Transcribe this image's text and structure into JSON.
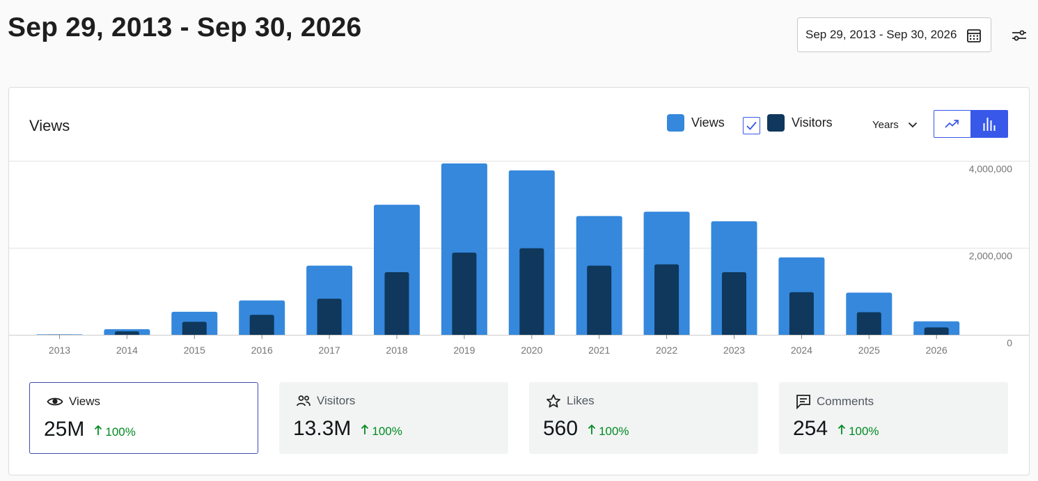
{
  "header": {
    "title": "Sep 29, 2013 - Sep 30, 2026",
    "date_range": "Sep 29, 2013 - Sep 30, 2026"
  },
  "chart_card": {
    "title": "Views",
    "legend": {
      "views": "Views",
      "visitors": "Visitors"
    },
    "period": "Years",
    "colors": {
      "views": "#3588dc",
      "visitors": "#0f385c",
      "accent": "#3858e9"
    }
  },
  "chart_data": {
    "type": "bar",
    "categories": [
      "2013",
      "2014",
      "2015",
      "2016",
      "2017",
      "2018",
      "2019",
      "2020",
      "2021",
      "2022",
      "2023",
      "2024",
      "2025",
      "2026"
    ],
    "series": [
      {
        "name": "Views",
        "values": [
          10000,
          130000,
          530000,
          790000,
          1590000,
          2990000,
          3940000,
          3780000,
          2730000,
          2830000,
          2610000,
          1780000,
          970000,
          310000
        ]
      },
      {
        "name": "Visitors",
        "values": [
          5000,
          80000,
          300000,
          460000,
          830000,
          1440000,
          1890000,
          1990000,
          1590000,
          1620000,
          1440000,
          980000,
          520000,
          170000
        ]
      }
    ],
    "y_ticks": [
      "4,000,000",
      "2,000,000",
      "0"
    ],
    "ylim": [
      0,
      4000000
    ],
    "grid": true
  },
  "stats": [
    {
      "label": "Views",
      "value": "25M",
      "delta": "100%",
      "icon": "eye-icon"
    },
    {
      "label": "Visitors",
      "value": "13.3M",
      "delta": "100%",
      "icon": "people-icon"
    },
    {
      "label": "Likes",
      "value": "560",
      "delta": "100%",
      "icon": "star-icon"
    },
    {
      "label": "Comments",
      "value": "254",
      "delta": "100%",
      "icon": "comment-icon"
    }
  ]
}
